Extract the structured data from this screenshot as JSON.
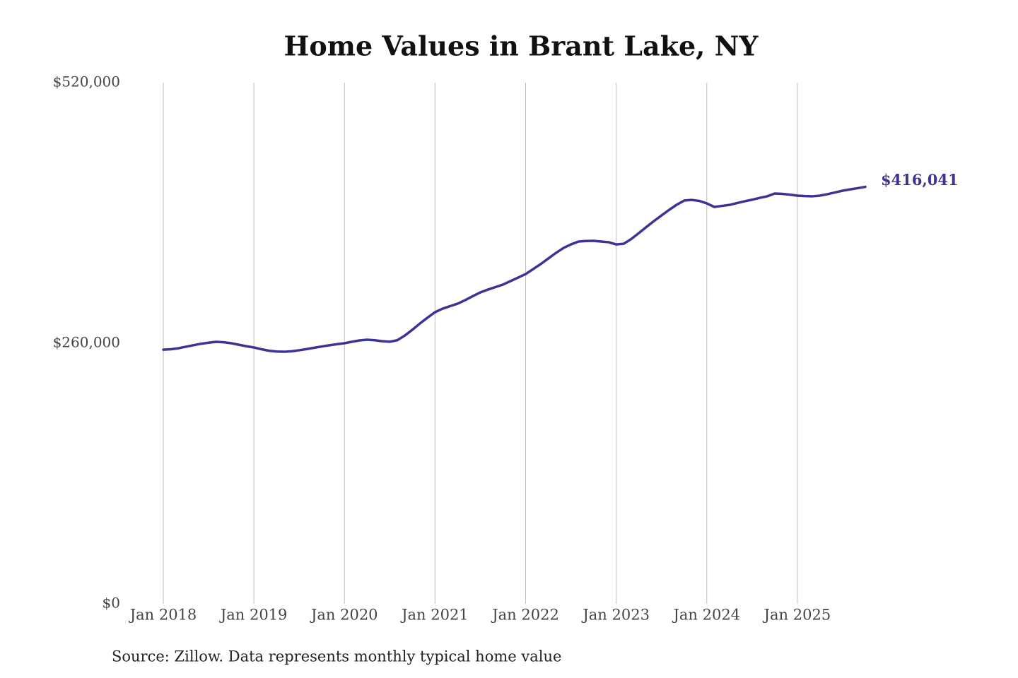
{
  "chart_data": {
    "type": "line",
    "title": "Home Values in Brant Lake, NY",
    "source": "Source: Zillow. Data represents monthly typical home value",
    "x": [
      "2018-01",
      "2018-02",
      "2018-03",
      "2018-04",
      "2018-05",
      "2018-06",
      "2018-07",
      "2018-08",
      "2018-09",
      "2018-10",
      "2018-11",
      "2018-12",
      "2019-01",
      "2019-02",
      "2019-03",
      "2019-04",
      "2019-05",
      "2019-06",
      "2019-07",
      "2019-08",
      "2019-09",
      "2019-10",
      "2019-11",
      "2019-12",
      "2020-01",
      "2020-02",
      "2020-03",
      "2020-04",
      "2020-05",
      "2020-06",
      "2020-07",
      "2020-08",
      "2020-09",
      "2020-10",
      "2020-11",
      "2020-12",
      "2021-01",
      "2021-02",
      "2021-03",
      "2021-04",
      "2021-05",
      "2021-06",
      "2021-07",
      "2021-08",
      "2021-09",
      "2021-10",
      "2021-11",
      "2021-12",
      "2022-01",
      "2022-02",
      "2022-03",
      "2022-04",
      "2022-05",
      "2022-06",
      "2022-07",
      "2022-08",
      "2022-09",
      "2022-10",
      "2022-11",
      "2022-12",
      "2023-01",
      "2023-02",
      "2023-03",
      "2023-04",
      "2023-05",
      "2023-06",
      "2023-07",
      "2023-08",
      "2023-09",
      "2023-10",
      "2023-11",
      "2023-12",
      "2024-01",
      "2024-02",
      "2024-03",
      "2024-04",
      "2024-05",
      "2024-06",
      "2024-07",
      "2024-08",
      "2024-09",
      "2024-10",
      "2024-11",
      "2024-12",
      "2025-01",
      "2025-02",
      "2025-03",
      "2025-04",
      "2025-05",
      "2025-06",
      "2025-07",
      "2025-08",
      "2025-09",
      "2025-10"
    ],
    "series": [
      {
        "color": "#3b3494",
        "values": [
          253600,
          254000,
          255000,
          256500,
          258000,
          259500,
          260500,
          261400,
          261000,
          260000,
          258500,
          257000,
          255800,
          254000,
          252500,
          251700,
          251500,
          252000,
          253000,
          254200,
          255500,
          256800,
          258000,
          259000,
          260000,
          261500,
          262800,
          263500,
          263000,
          262000,
          261500,
          263000,
          267700,
          273500,
          279700,
          285500,
          291000,
          294500,
          297000,
          299500,
          303000,
          307000,
          310700,
          313500,
          316000,
          318500,
          322000,
          325500,
          329000,
          334000,
          339000,
          344500,
          350000,
          355000,
          358600,
          361500,
          362000,
          362200,
          361500,
          360800,
          358600,
          359300,
          364000,
          369900,
          376000,
          381900,
          387500,
          393000,
          398100,
          402300,
          403000,
          402000,
          399500,
          396000,
          397000,
          398000,
          399800,
          401600,
          403200,
          405000,
          406600,
          409400,
          409000,
          408200,
          407300,
          406800,
          406600,
          407300,
          408700,
          410500,
          412200,
          413500,
          414700,
          416041
        ],
        "last_value_label": "$416,041"
      }
    ],
    "xlim": [
      "2018-01",
      "2025-10"
    ],
    "xticks": [
      {
        "value": "2018-01",
        "label": "Jan 2018"
      },
      {
        "value": "2019-01",
        "label": "Jan 2019"
      },
      {
        "value": "2020-01",
        "label": "Jan 2020"
      },
      {
        "value": "2021-01",
        "label": "Jan 2021"
      },
      {
        "value": "2022-01",
        "label": "Jan 2022"
      },
      {
        "value": "2023-01",
        "label": "Jan 2023"
      },
      {
        "value": "2024-01",
        "label": "Jan 2024"
      },
      {
        "value": "2025-01",
        "label": "Jan 2025"
      }
    ],
    "ylim": [
      0,
      520000
    ],
    "yticks": [
      {
        "value": 0,
        "label": "$0"
      },
      {
        "value": 260000,
        "label": "$260,000"
      },
      {
        "value": 520000,
        "label": "$520,000"
      }
    ],
    "grid": "x"
  }
}
